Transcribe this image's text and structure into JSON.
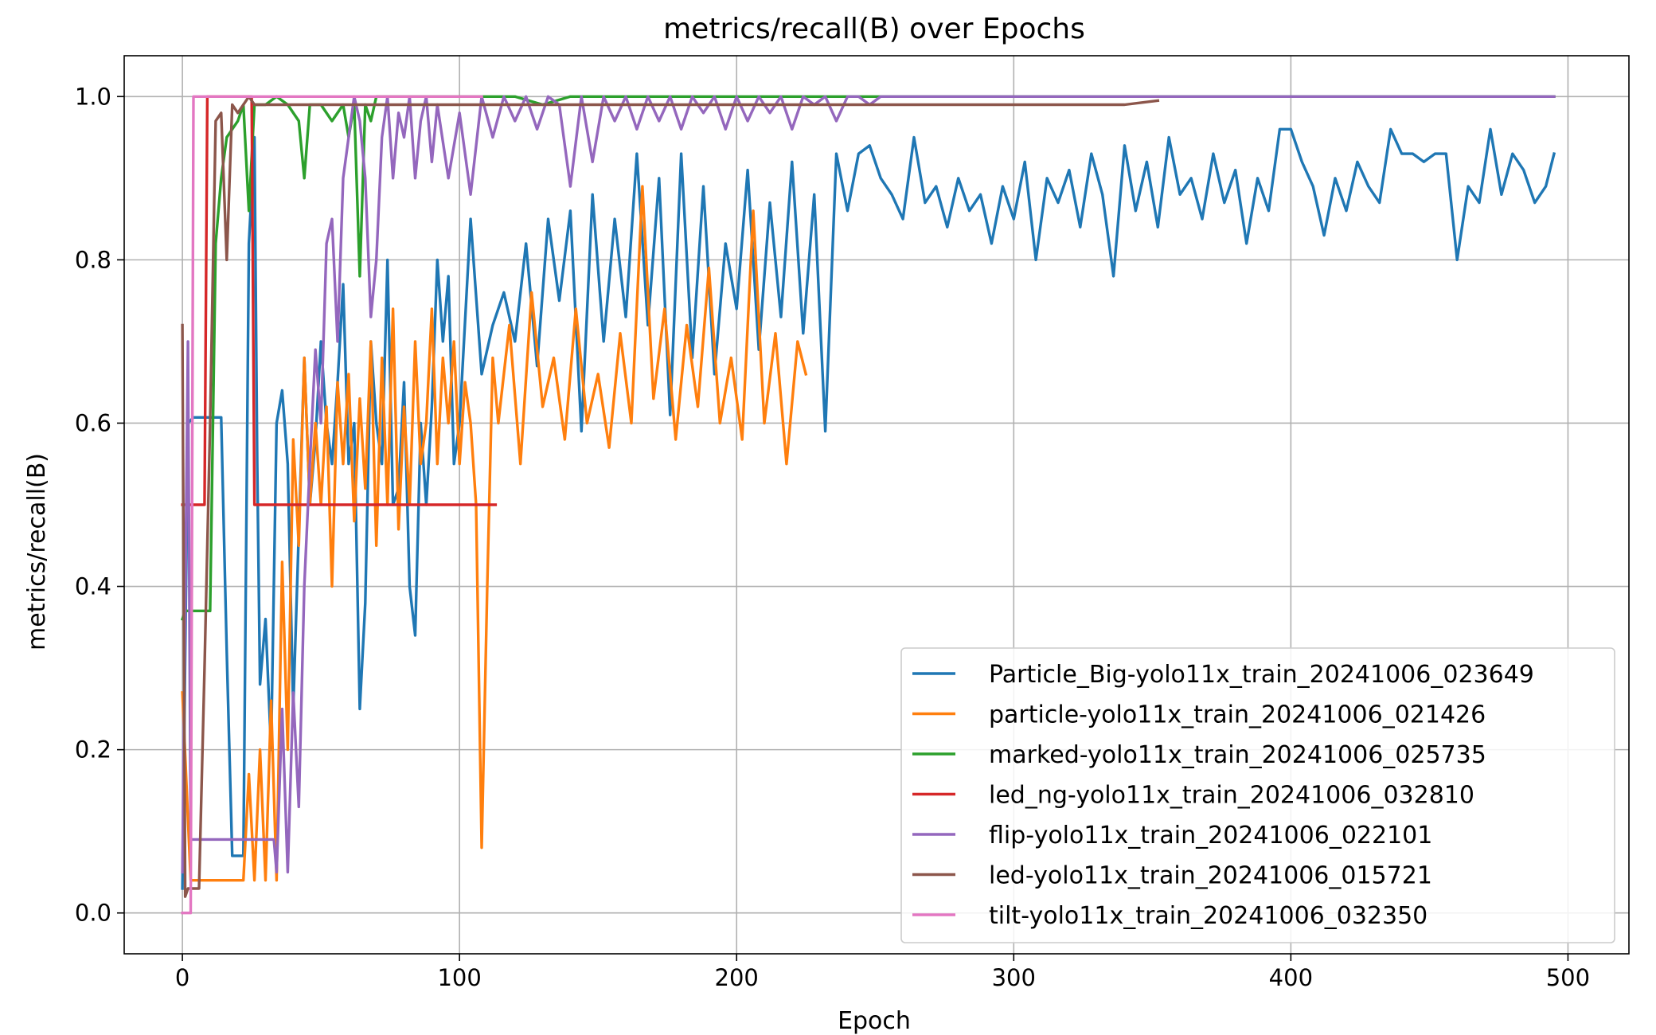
{
  "chart_data": {
    "type": "line",
    "title": "metrics/recall(B) over Epochs",
    "xlabel": "Epoch",
    "ylabel": "metrics/recall(B)",
    "xlim": [
      -21,
      522
    ],
    "ylim": [
      -0.05,
      1.05
    ],
    "xticks": [
      0,
      100,
      200,
      300,
      400,
      500
    ],
    "yticks": [
      0.0,
      0.2,
      0.4,
      0.6,
      0.8,
      1.0
    ],
    "xtick_labels": [
      "0",
      "100",
      "200",
      "300",
      "400",
      "500"
    ],
    "ytick_labels": [
      "0.0",
      "0.2",
      "0.4",
      "0.6",
      "0.8",
      "1.0"
    ],
    "grid": true,
    "legend_position": "lower-right",
    "series": [
      {
        "name": "Particle_Big-yolo11x_train_20241006_023649",
        "color": "#1f77b4",
        "x": [
          0,
          2,
          4,
          10,
          14,
          16,
          18,
          22,
          24,
          26,
          27,
          28,
          30,
          32,
          34,
          36,
          38,
          40,
          44,
          46,
          48,
          50,
          52,
          54,
          56,
          58,
          60,
          62,
          64,
          66,
          68,
          70,
          72,
          74,
          76,
          78,
          80,
          82,
          84,
          86,
          88,
          90,
          92,
          94,
          96,
          98,
          100,
          104,
          108,
          112,
          116,
          120,
          124,
          128,
          132,
          136,
          140,
          144,
          148,
          152,
          156,
          160,
          164,
          168,
          172,
          176,
          180,
          184,
          188,
          192,
          196,
          200,
          204,
          208,
          212,
          216,
          220,
          224,
          228,
          232,
          236,
          240,
          244,
          248,
          252,
          256,
          260,
          264,
          268,
          272,
          276,
          280,
          284,
          288,
          292,
          296,
          300,
          304,
          308,
          312,
          316,
          320,
          324,
          328,
          332,
          336,
          340,
          344,
          348,
          352,
          356,
          360,
          364,
          368,
          372,
          376,
          380,
          384,
          388,
          392,
          396,
          400,
          404,
          408,
          412,
          416,
          420,
          424,
          428,
          432,
          436,
          440,
          444,
          448,
          452,
          456,
          460,
          464,
          468,
          472,
          476,
          480,
          484,
          488,
          492,
          495
        ],
        "y": [
          0.03,
          0.6,
          0.607,
          0.607,
          0.607,
          0.32,
          0.07,
          0.07,
          0.82,
          0.95,
          0.55,
          0.28,
          0.36,
          0.2,
          0.6,
          0.64,
          0.55,
          0.25,
          0.68,
          0.5,
          0.58,
          0.7,
          0.6,
          0.55,
          0.65,
          0.77,
          0.55,
          0.6,
          0.25,
          0.38,
          0.7,
          0.6,
          0.55,
          0.8,
          0.5,
          0.52,
          0.65,
          0.4,
          0.34,
          0.6,
          0.5,
          0.62,
          0.8,
          0.7,
          0.78,
          0.55,
          0.6,
          0.85,
          0.66,
          0.72,
          0.76,
          0.7,
          0.82,
          0.67,
          0.85,
          0.75,
          0.86,
          0.59,
          0.88,
          0.7,
          0.85,
          0.73,
          0.93,
          0.72,
          0.9,
          0.61,
          0.93,
          0.68,
          0.89,
          0.66,
          0.82,
          0.74,
          0.91,
          0.69,
          0.87,
          0.73,
          0.92,
          0.71,
          0.88,
          0.59,
          0.93,
          0.86,
          0.93,
          0.94,
          0.9,
          0.88,
          0.85,
          0.95,
          0.87,
          0.89,
          0.84,
          0.9,
          0.86,
          0.88,
          0.82,
          0.89,
          0.85,
          0.92,
          0.8,
          0.9,
          0.87,
          0.91,
          0.84,
          0.93,
          0.88,
          0.78,
          0.94,
          0.86,
          0.92,
          0.84,
          0.95,
          0.88,
          0.9,
          0.85,
          0.93,
          0.87,
          0.91,
          0.82,
          0.9,
          0.86,
          0.96,
          0.96,
          0.92,
          0.89,
          0.83,
          0.9,
          0.86,
          0.92,
          0.89,
          0.87,
          0.96,
          0.93,
          0.93,
          0.92,
          0.93,
          0.93,
          0.8,
          0.89,
          0.87,
          0.96,
          0.88,
          0.93,
          0.91,
          0.87,
          0.89,
          0.93
        ]
      },
      {
        "name": "particle-yolo11x_train_20241006_021426",
        "color": "#ff7f0e",
        "x": [
          0,
          3,
          4,
          10,
          14,
          20,
          22,
          24,
          26,
          28,
          30,
          32,
          34,
          36,
          38,
          40,
          42,
          44,
          46,
          48,
          50,
          52,
          54,
          56,
          58,
          60,
          62,
          64,
          66,
          68,
          70,
          72,
          74,
          76,
          78,
          80,
          82,
          84,
          86,
          88,
          90,
          92,
          94,
          96,
          98,
          100,
          102,
          104,
          106,
          108,
          110,
          112,
          114,
          118,
          122,
          126,
          130,
          134,
          138,
          142,
          146,
          150,
          154,
          158,
          162,
          166,
          170,
          174,
          178,
          182,
          186,
          190,
          194,
          198,
          202,
          206,
          210,
          214,
          218,
          222,
          225
        ],
        "y": [
          0.27,
          0.04,
          0.04,
          0.04,
          0.04,
          0.04,
          0.04,
          0.17,
          0.04,
          0.2,
          0.04,
          0.26,
          0.04,
          0.43,
          0.2,
          0.58,
          0.45,
          0.68,
          0.5,
          0.6,
          0.5,
          0.62,
          0.4,
          0.65,
          0.55,
          0.66,
          0.48,
          0.63,
          0.52,
          0.7,
          0.45,
          0.68,
          0.5,
          0.74,
          0.47,
          0.62,
          0.5,
          0.7,
          0.55,
          0.6,
          0.74,
          0.55,
          0.68,
          0.6,
          0.7,
          0.55,
          0.65,
          0.6,
          0.5,
          0.08,
          0.4,
          0.68,
          0.6,
          0.72,
          0.55,
          0.76,
          0.62,
          0.68,
          0.58,
          0.74,
          0.6,
          0.66,
          0.57,
          0.71,
          0.6,
          0.89,
          0.63,
          0.74,
          0.58,
          0.72,
          0.62,
          0.79,
          0.6,
          0.68,
          0.58,
          0.86,
          0.6,
          0.71,
          0.55,
          0.7,
          0.66
        ]
      },
      {
        "name": "marked-yolo11x_train_20241006_025735",
        "color": "#2ca02c",
        "x": [
          0,
          1,
          10,
          12,
          14,
          16,
          18,
          20,
          22,
          24,
          26,
          28,
          30,
          34,
          38,
          42,
          44,
          46,
          50,
          54,
          58,
          60,
          62,
          64,
          66,
          68,
          70,
          74,
          80,
          90,
          100,
          110,
          120,
          130,
          140,
          150,
          160,
          170,
          180,
          190,
          200,
          210,
          220,
          230,
          240,
          250,
          260,
          300,
          340,
          380,
          420,
          460,
          495
        ],
        "y": [
          0.36,
          0.37,
          0.37,
          0.82,
          0.9,
          0.95,
          0.96,
          0.97,
          0.99,
          0.86,
          0.99,
          0.99,
          0.99,
          1.0,
          0.99,
          0.97,
          0.9,
          0.99,
          0.99,
          0.97,
          0.99,
          0.95,
          0.99,
          0.78,
          0.99,
          0.97,
          1.0,
          1.0,
          1.0,
          1.0,
          1.0,
          1.0,
          1.0,
          0.99,
          1.0,
          1.0,
          1.0,
          1.0,
          1.0,
          1.0,
          1.0,
          1.0,
          1.0,
          1.0,
          1.0,
          1.0,
          1.0,
          1.0,
          1.0,
          1.0,
          1.0,
          1.0,
          1.0
        ]
      },
      {
        "name": "led_ng-yolo11x_train_20241006_032810",
        "color": "#d62728",
        "x": [
          0,
          1,
          8,
          9,
          10,
          25,
          26,
          113
        ],
        "y": [
          0.5,
          0.5,
          0.5,
          1.0,
          1.0,
          1.0,
          0.5,
          0.5
        ]
      },
      {
        "name": "flip-yolo11x_train_20241006_022101",
        "color": "#9467bd",
        "x": [
          0,
          2,
          3,
          4,
          6,
          10,
          20,
          30,
          33,
          34,
          36,
          38,
          40,
          42,
          44,
          46,
          48,
          50,
          52,
          54,
          56,
          58,
          60,
          62,
          64,
          66,
          68,
          70,
          72,
          74,
          76,
          78,
          80,
          82,
          84,
          86,
          88,
          90,
          92,
          96,
          100,
          104,
          108,
          112,
          116,
          120,
          124,
          128,
          132,
          136,
          140,
          144,
          148,
          152,
          156,
          160,
          164,
          168,
          172,
          176,
          180,
          184,
          188,
          192,
          196,
          200,
          204,
          208,
          212,
          216,
          220,
          224,
          228,
          232,
          236,
          240,
          244,
          248,
          252,
          256,
          260,
          270,
          280,
          290,
          300,
          320,
          340,
          360,
          380,
          400,
          440,
          495
        ],
        "y": [
          0.05,
          0.7,
          0.09,
          0.09,
          0.09,
          0.09,
          0.09,
          0.09,
          0.09,
          0.05,
          0.25,
          0.05,
          0.27,
          0.13,
          0.4,
          0.55,
          0.69,
          0.6,
          0.82,
          0.85,
          0.7,
          0.9,
          0.95,
          1.0,
          0.97,
          0.9,
          0.73,
          0.8,
          0.95,
          1.0,
          0.9,
          0.98,
          0.95,
          1.0,
          0.9,
          0.97,
          1.0,
          0.92,
          0.99,
          0.9,
          0.98,
          0.88,
          1.0,
          0.95,
          1.0,
          0.97,
          1.0,
          0.96,
          1.0,
          0.99,
          0.89,
          1.0,
          0.92,
          1.0,
          0.97,
          1.0,
          0.96,
          1.0,
          0.97,
          1.0,
          0.96,
          1.0,
          0.98,
          1.0,
          0.96,
          1.0,
          0.97,
          1.0,
          0.98,
          1.0,
          0.96,
          1.0,
          0.99,
          1.0,
          0.97,
          1.0,
          1.0,
          0.99,
          1.0,
          1.0,
          1.0,
          1.0,
          1.0,
          1.0,
          1.0,
          1.0,
          1.0,
          1.0,
          1.0,
          1.0,
          1.0,
          1.0
        ]
      },
      {
        "name": "led-yolo11x_train_20241006_015721",
        "color": "#8c564b",
        "x": [
          0,
          1,
          2,
          4,
          6,
          8,
          10,
          12,
          14,
          16,
          18,
          20,
          22,
          24,
          26,
          30,
          40,
          50,
          60,
          80,
          100,
          120,
          140,
          160,
          180,
          200,
          220,
          240,
          260,
          280,
          300,
          320,
          340,
          352
        ],
        "y": [
          0.72,
          0.02,
          0.03,
          0.03,
          0.03,
          0.3,
          0.6,
          0.97,
          0.98,
          0.8,
          0.99,
          0.98,
          0.99,
          1.0,
          0.99,
          0.99,
          0.99,
          0.99,
          0.99,
          0.99,
          0.99,
          0.99,
          0.99,
          0.99,
          0.99,
          0.99,
          0.99,
          0.99,
          0.99,
          0.99,
          0.99,
          0.99,
          0.99,
          0.995
        ]
      },
      {
        "name": "tilt-yolo11x_train_20241006_032350",
        "color": "#e377c2",
        "x": [
          0,
          3,
          4,
          108
        ],
        "y": [
          0.0,
          0.0,
          1.0,
          1.0
        ]
      }
    ]
  }
}
